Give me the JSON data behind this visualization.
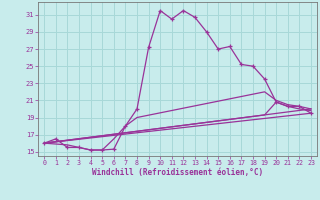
{
  "xlabel": "Windchill (Refroidissement éolien,°C)",
  "bg_color": "#c8ecec",
  "grid_color": "#a8d8d8",
  "line_color": "#993399",
  "xlim": [
    -0.5,
    23.5
  ],
  "ylim": [
    14.5,
    32.5
  ],
  "xticks": [
    0,
    1,
    2,
    3,
    4,
    5,
    6,
    7,
    8,
    9,
    10,
    11,
    12,
    13,
    14,
    15,
    16,
    17,
    18,
    19,
    20,
    21,
    22,
    23
  ],
  "yticks": [
    15,
    17,
    19,
    21,
    23,
    25,
    27,
    29,
    31
  ],
  "curve_main_x": [
    0,
    1,
    2,
    3,
    4,
    5,
    6,
    7,
    8,
    9,
    10,
    11,
    12,
    13,
    14,
    15,
    16,
    17,
    18,
    19,
    20,
    21,
    22,
    23
  ],
  "curve_main_y": [
    16.0,
    16.5,
    15.5,
    15.5,
    15.2,
    15.2,
    15.3,
    18.0,
    20.0,
    27.2,
    31.5,
    30.5,
    31.5,
    30.7,
    29.0,
    27.0,
    27.3,
    25.2,
    25.0,
    23.5,
    20.8,
    20.3,
    20.3,
    19.5
  ],
  "curve2_x": [
    0,
    2,
    3,
    4,
    5,
    6,
    7,
    8,
    19,
    20,
    21,
    22,
    23
  ],
  "curve2_y": [
    16.0,
    15.8,
    15.5,
    15.2,
    15.2,
    16.5,
    18.0,
    19.0,
    22.0,
    21.0,
    20.5,
    20.3,
    20.0
  ],
  "curve3_x": [
    0,
    23
  ],
  "curve3_y": [
    16.0,
    20.0
  ],
  "curve4_x": [
    0,
    19,
    20,
    21,
    22,
    23
  ],
  "curve4_y": [
    16.0,
    19.3,
    20.8,
    20.3,
    20.0,
    19.8
  ],
  "curve5_x": [
    0,
    23
  ],
  "curve5_y": [
    16.0,
    19.5
  ]
}
